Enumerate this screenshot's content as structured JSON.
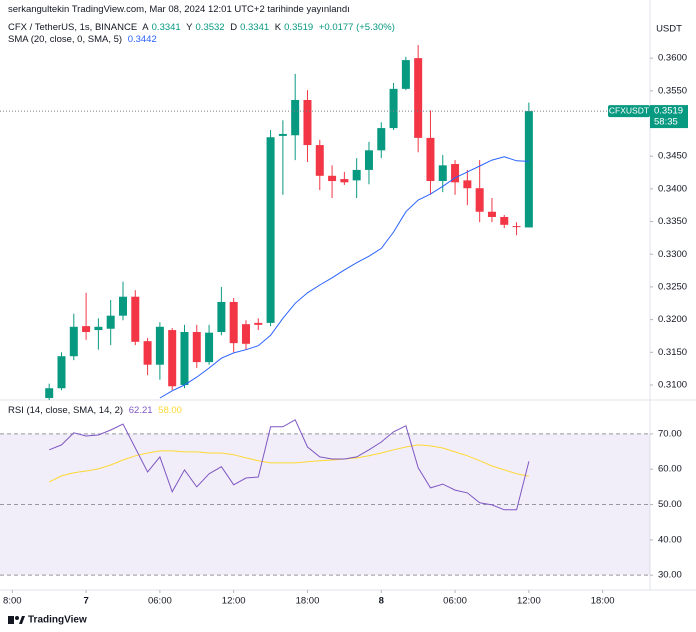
{
  "chart_data": {
    "type": "candlestick",
    "published": "serkangultekin TradingView.com, Mar 08, 2024 12:01 UTC+2 tarihinde yayınlandı",
    "currency": "USDT",
    "symbol": "CFX / TetherUS, 1s, BINANCE",
    "ohlc_labels": [
      "A",
      "Y",
      "D",
      "K"
    ],
    "change": "+0.0177 (+5.30%)",
    "up_color": "#089981",
    "down_color": "#f23645",
    "candles": [
      {
        "o": 0.308,
        "h": 0.3102,
        "l": 0.3077,
        "c": 0.3095
      },
      {
        "o": 0.3095,
        "h": 0.315,
        "l": 0.3092,
        "c": 0.3144
      },
      {
        "o": 0.3144,
        "h": 0.3209,
        "l": 0.3138,
        "c": 0.3189
      },
      {
        "o": 0.319,
        "h": 0.3241,
        "l": 0.3169,
        "c": 0.3181
      },
      {
        "o": 0.3184,
        "h": 0.3202,
        "l": 0.3154,
        "c": 0.3189
      },
      {
        "o": 0.3186,
        "h": 0.323,
        "l": 0.3161,
        "c": 0.3206
      },
      {
        "o": 0.3206,
        "h": 0.3258,
        "l": 0.3199,
        "c": 0.3235
      },
      {
        "o": 0.3235,
        "h": 0.3245,
        "l": 0.3161,
        "c": 0.3166
      },
      {
        "o": 0.3167,
        "h": 0.3172,
        "l": 0.3115,
        "c": 0.3131
      },
      {
        "o": 0.3131,
        "h": 0.3196,
        "l": 0.3108,
        "c": 0.3189
      },
      {
        "o": 0.3184,
        "h": 0.3187,
        "l": 0.3092,
        "c": 0.3098
      },
      {
        "o": 0.31,
        "h": 0.3192,
        "l": 0.3095,
        "c": 0.3181
      },
      {
        "o": 0.3181,
        "h": 0.3192,
        "l": 0.3126,
        "c": 0.3135
      },
      {
        "o": 0.3135,
        "h": 0.3192,
        "l": 0.3131,
        "c": 0.318
      },
      {
        "o": 0.3181,
        "h": 0.325,
        "l": 0.3176,
        "c": 0.3227
      },
      {
        "o": 0.3227,
        "h": 0.3233,
        "l": 0.315,
        "c": 0.3164
      },
      {
        "o": 0.3193,
        "h": 0.3199,
        "l": 0.3154,
        "c": 0.3163
      },
      {
        "o": 0.3195,
        "h": 0.3202,
        "l": 0.3184,
        "c": 0.3192
      },
      {
        "o": 0.3195,
        "h": 0.349,
        "l": 0.319,
        "c": 0.3479
      },
      {
        "o": 0.3481,
        "h": 0.3505,
        "l": 0.3391,
        "c": 0.3484
      },
      {
        "o": 0.3482,
        "h": 0.3576,
        "l": 0.3444,
        "c": 0.3536
      },
      {
        "o": 0.3536,
        "h": 0.3551,
        "l": 0.3441,
        "c": 0.3467
      },
      {
        "o": 0.3467,
        "h": 0.3475,
        "l": 0.3398,
        "c": 0.342
      },
      {
        "o": 0.342,
        "h": 0.3436,
        "l": 0.3386,
        "c": 0.3412
      },
      {
        "o": 0.3415,
        "h": 0.3426,
        "l": 0.3406,
        "c": 0.341
      },
      {
        "o": 0.3413,
        "h": 0.3447,
        "l": 0.3386,
        "c": 0.3429
      },
      {
        "o": 0.3429,
        "h": 0.3472,
        "l": 0.3407,
        "c": 0.3459
      },
      {
        "o": 0.3459,
        "h": 0.3502,
        "l": 0.3447,
        "c": 0.3493
      },
      {
        "o": 0.3493,
        "h": 0.3562,
        "l": 0.349,
        "c": 0.3553
      },
      {
        "o": 0.3553,
        "h": 0.3602,
        "l": 0.3551,
        "c": 0.3597
      },
      {
        "o": 0.36,
        "h": 0.362,
        "l": 0.3456,
        "c": 0.3478
      },
      {
        "o": 0.3478,
        "h": 0.352,
        "l": 0.3391,
        "c": 0.3412
      },
      {
        "o": 0.3412,
        "h": 0.3452,
        "l": 0.3395,
        "c": 0.3436
      },
      {
        "o": 0.3438,
        "h": 0.3444,
        "l": 0.3391,
        "c": 0.341
      },
      {
        "o": 0.3413,
        "h": 0.3429,
        "l": 0.3375,
        "c": 0.3401
      },
      {
        "o": 0.3401,
        "h": 0.3444,
        "l": 0.3349,
        "c": 0.3365
      },
      {
        "o": 0.3365,
        "h": 0.3386,
        "l": 0.3349,
        "c": 0.3357
      },
      {
        "o": 0.3357,
        "h": 0.336,
        "l": 0.334,
        "c": 0.3345
      },
      {
        "o": 0.3343,
        "h": 0.3349,
        "l": 0.3329,
        "c": 0.3342
      },
      {
        "o": 0.3341,
        "h": 0.3532,
        "l": 0.3341,
        "c": 0.3519
      }
    ],
    "xlim": [
      -4,
      48.85
    ],
    "xticks": [
      {
        "value": -3,
        "label": "8:00"
      },
      {
        "value": 3,
        "label": "7"
      },
      {
        "value": 9,
        "label": "06:00"
      },
      {
        "value": 15,
        "label": "12:00"
      },
      {
        "value": 21,
        "label": "18:00"
      },
      {
        "value": 27,
        "label": "8"
      },
      {
        "value": 33,
        "label": "06:00"
      },
      {
        "value": 39,
        "label": "12:00"
      },
      {
        "value": 45,
        "label": "18:00"
      }
    ],
    "ylim": [
      0.3077,
      0.3666
    ],
    "yticks": [
      {
        "value": 0.36,
        "label": "0.3600"
      },
      {
        "value": 0.355,
        "label": "0.3550"
      },
      {
        "value": 0.345,
        "label": "0.3450"
      },
      {
        "value": 0.34,
        "label": "0.3400"
      },
      {
        "value": 0.335,
        "label": "0.3350"
      },
      {
        "value": 0.33,
        "label": "0.3300"
      },
      {
        "value": 0.325,
        "label": "0.3250"
      },
      {
        "value": 0.32,
        "label": "0.3200"
      },
      {
        "value": 0.315,
        "label": "0.3150"
      },
      {
        "value": 0.31,
        "label": "0.3100"
      }
    ],
    "sma": {
      "name": "SMA (20, close, 0, SMA, 5)",
      "color": "#2962ff",
      "values": [
        null,
        null,
        null,
        null,
        null,
        null,
        null,
        null,
        null,
        0.308,
        0.3091,
        0.31,
        0.3112,
        0.3126,
        0.3141,
        0.3149,
        0.3154,
        0.316,
        0.3176,
        0.3202,
        0.3225,
        0.3241,
        0.3253,
        0.3264,
        0.3276,
        0.3287,
        0.3297,
        0.3309,
        0.3334,
        0.3365,
        0.3383,
        0.3392,
        0.3404,
        0.3417,
        0.3426,
        0.3435,
        0.3444,
        0.3449,
        0.3443,
        0.3442
      ]
    },
    "price_label": {
      "name": "CFXUSDT",
      "countdown": "58:35"
    },
    "rsi": {
      "name": "RSI (14, close, SMA, 14, 2)",
      "color": "#7e57c2",
      "values": [
        65.5,
        66.9,
        70.3,
        69.4,
        69.7,
        71.1,
        72.8,
        66.0,
        59.2,
        63.5,
        53.6,
        59.8,
        55.0,
        58.7,
        60.7,
        55.6,
        57.5,
        57.8,
        72.0,
        72.0,
        74.0,
        66.3,
        63.5,
        62.9,
        62.9,
        63.5,
        65.5,
        67.7,
        70.6,
        72.3,
        60.4,
        54.7,
        55.8,
        54.1,
        53.3,
        50.5,
        49.9,
        48.5,
        48.5,
        62.21
      ],
      "ylim": [
        25.8,
        79.6
      ],
      "yticks": [
        {
          "value": 70,
          "label": "70.00"
        },
        {
          "value": 60,
          "label": "60.00"
        },
        {
          "value": 50,
          "label": "50.00"
        },
        {
          "value": 40,
          "label": "40.00"
        },
        {
          "value": 30,
          "label": "30.00"
        }
      ],
      "band": [
        30,
        70
      ],
      "hlines": [
        70,
        50,
        30
      ]
    },
    "rsi_sma": {
      "color": "#fdd835",
      "legend_value": "58.00",
      "values": [
        56.4,
        58.1,
        59.0,
        59.5,
        60.1,
        61.2,
        62.6,
        63.8,
        64.6,
        65.2,
        65.2,
        64.9,
        64.9,
        64.6,
        64.6,
        64.1,
        63.2,
        62.4,
        61.8,
        61.8,
        61.8,
        62.1,
        62.4,
        62.6,
        62.9,
        63.2,
        63.8,
        64.6,
        65.5,
        66.3,
        66.9,
        66.6,
        66.0,
        64.9,
        63.8,
        62.4,
        60.9,
        59.8,
        58.7,
        58.0
      ]
    },
    "footer": "TradingView"
  }
}
